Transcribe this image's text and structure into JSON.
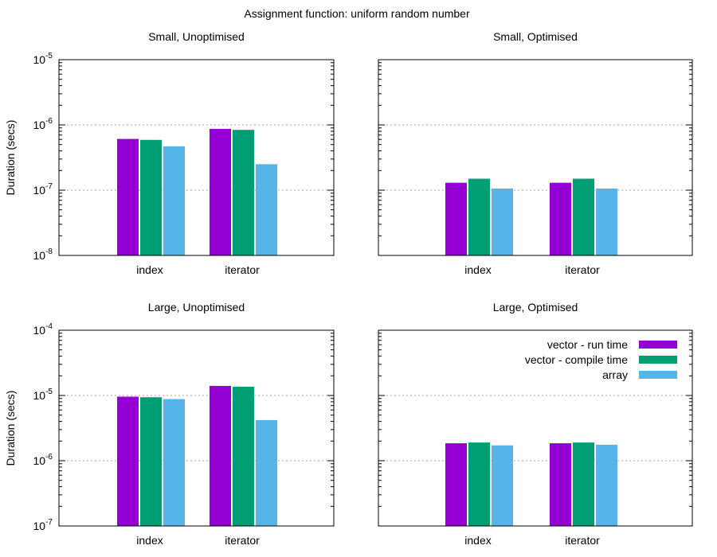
{
  "title": "Assignment function: uniform random number",
  "colors": {
    "vector_run": "#9400d3",
    "vector_compile": "#009e73",
    "array": "#56b4e9"
  },
  "legend": {
    "placement": "top-right of bottom-right panel",
    "items": [
      "vector - run time",
      "vector - compile time",
      "array"
    ]
  },
  "chart_data": [
    {
      "type": "bar",
      "title": "Small, Unoptimised",
      "ylabel": "Duration (secs)",
      "yscale": "log",
      "ylim": [
        1e-08,
        1e-05
      ],
      "yticks": [
        {
          "b": "10",
          "e": "-8"
        },
        {
          "b": "10",
          "e": "-7"
        },
        {
          "b": "10",
          "e": "-6"
        },
        {
          "b": "10",
          "e": "-5"
        }
      ],
      "categories": [
        "index",
        "iterator"
      ],
      "series": [
        {
          "name": "vector - run time",
          "values": [
            6.1e-07,
            8.7e-07
          ]
        },
        {
          "name": "vector - compile time",
          "values": [
            5.9e-07,
            8.4e-07
          ]
        },
        {
          "name": "array",
          "values": [
            4.7e-07,
            2.5e-07
          ]
        }
      ]
    },
    {
      "type": "bar",
      "title": "Small, Optimised",
      "ylabel": "",
      "yscale": "log",
      "ylim": [
        1e-08,
        1e-05
      ],
      "yticks": [],
      "categories": [
        "index",
        "iterator"
      ],
      "series": [
        {
          "name": "vector - run time",
          "values": [
            1.3e-07,
            1.3e-07
          ]
        },
        {
          "name": "vector - compile time",
          "values": [
            1.5e-07,
            1.5e-07
          ]
        },
        {
          "name": "array",
          "values": [
            1.06e-07,
            1.06e-07
          ]
        }
      ]
    },
    {
      "type": "bar",
      "title": "Large, Unoptimised",
      "ylabel": "Duration (secs)",
      "yscale": "log",
      "ylim": [
        1e-07,
        0.0001
      ],
      "yticks": [
        {
          "b": "10",
          "e": "-7"
        },
        {
          "b": "10",
          "e": "-6"
        },
        {
          "b": "10",
          "e": "-5"
        },
        {
          "b": "10",
          "e": "-4"
        }
      ],
      "categories": [
        "index",
        "iterator"
      ],
      "series": [
        {
          "name": "vector - run time",
          "values": [
            9.6e-06,
            1.4e-05
          ]
        },
        {
          "name": "vector - compile time",
          "values": [
            9.4e-06,
            1.36e-05
          ]
        },
        {
          "name": "array",
          "values": [
            8.8e-06,
            4.2e-06
          ]
        }
      ]
    },
    {
      "type": "bar",
      "title": "Large, Optimised",
      "ylabel": "",
      "yscale": "log",
      "ylim": [
        1e-07,
        0.0001
      ],
      "yticks": [],
      "categories": [
        "index",
        "iterator"
      ],
      "series": [
        {
          "name": "vector - run time",
          "values": [
            1.85e-06,
            1.85e-06
          ]
        },
        {
          "name": "vector - compile time",
          "values": [
            1.9e-06,
            1.9e-06
          ]
        },
        {
          "name": "array",
          "values": [
            1.72e-06,
            1.76e-06
          ]
        }
      ]
    }
  ]
}
